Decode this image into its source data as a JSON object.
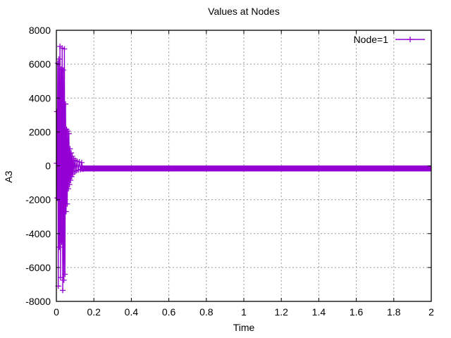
{
  "chart_data": {
    "type": "line",
    "title": "Values at Nodes",
    "xlabel": "Time",
    "ylabel": "A3",
    "xlim": [
      0,
      2
    ],
    "ylim": [
      -8000,
      8000
    ],
    "x_ticks": {
      "values": [
        0,
        0.2,
        0.4,
        0.6,
        0.8,
        1,
        1.2,
        1.4,
        1.6,
        1.8,
        2
      ],
      "labels": [
        "0",
        "0.2",
        "0.4",
        "0.6",
        "0.8",
        "1",
        "1.2",
        "1.4",
        "1.6",
        "1.8",
        "2"
      ]
    },
    "y_ticks": {
      "values": [
        -8000,
        -6000,
        -4000,
        -2000,
        0,
        2000,
        4000,
        6000,
        8000
      ],
      "labels": [
        "-8000",
        "-6000",
        "-4000",
        "-2000",
        "0",
        "2000",
        "4000",
        "6000",
        "8000"
      ]
    },
    "grid": true,
    "legend": {
      "position": "top-right-inside",
      "entries": [
        {
          "label": "Node=1",
          "color": "#9400d3",
          "marker": "plus"
        }
      ]
    },
    "series": [
      {
        "name": "Node=1",
        "color": "#9400d3",
        "marker": "plus",
        "description": "High-frequency damped oscillation: amplitude ~7000 near t=0.01-0.045, decays by t~0.15, then steady band slightly below 0 until t=2",
        "points": [
          [
            0.001,
            150
          ],
          [
            0.003,
            3200
          ],
          [
            0.005,
            -1900
          ],
          [
            0.007,
            6050
          ],
          [
            0.01,
            -7100
          ],
          [
            0.013,
            6300
          ],
          [
            0.016,
            -4800
          ],
          [
            0.019,
            7050
          ],
          [
            0.022,
            -6600
          ],
          [
            0.025,
            5700
          ],
          [
            0.028,
            -4500
          ],
          [
            0.031,
            6950
          ],
          [
            0.034,
            -7350
          ],
          [
            0.037,
            5650
          ],
          [
            0.04,
            -6750
          ],
          [
            0.043,
            6900
          ],
          [
            0.046,
            -6400
          ],
          [
            0.049,
            3650
          ],
          [
            0.052,
            -2700
          ],
          [
            0.055,
            2150
          ],
          [
            0.058,
            -2250
          ],
          [
            0.061,
            2050
          ],
          [
            0.064,
            -1350
          ],
          [
            0.067,
            1900
          ],
          [
            0.07,
            -1100
          ],
          [
            0.073,
            1000
          ],
          [
            0.076,
            -850
          ],
          [
            0.079,
            760
          ],
          [
            0.082,
            -640
          ],
          [
            0.085,
            560
          ],
          [
            0.088,
            -480
          ],
          [
            0.092,
            420
          ],
          [
            0.096,
            -370
          ],
          [
            0.1,
            330
          ],
          [
            0.105,
            -300
          ],
          [
            0.11,
            270
          ],
          [
            0.116,
            -250
          ],
          [
            0.122,
            230
          ],
          [
            0.128,
            -220
          ],
          [
            0.135,
            190
          ],
          [
            0.142,
            -200
          ]
        ],
        "steady_band": {
          "t_start": 0.13,
          "t_end": 2.0,
          "y_min": -330,
          "y_max": 20,
          "y_center": -140
        }
      }
    ],
    "colors": {
      "background": "#ffffff",
      "border": "#000000",
      "grid": "#999999",
      "text": "#000000",
      "series1": "#9400d3"
    }
  }
}
